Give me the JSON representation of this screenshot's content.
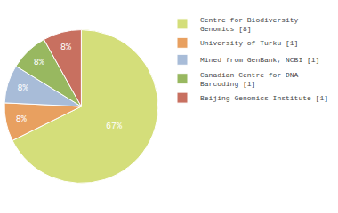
{
  "chart_data": {
    "type": "pie",
    "categories": [
      "Centre for Biodiversity\nGenomics [8]",
      "University of Turku [1]",
      "Mined from GenBank, NCBI [1]",
      "Canadian Centre for DNA\nBarcoding [1]",
      "Beijing Genomics Institute [1]"
    ],
    "values": [
      67,
      8,
      8,
      8,
      8
    ],
    "value_labels": [
      "67%",
      "8%",
      "8%",
      "8%",
      "8%"
    ],
    "colors": [
      "#d4de7a",
      "#e8a060",
      "#a8bcd8",
      "#98b860",
      "#c87060"
    ],
    "data_labels": true,
    "legend": "right"
  }
}
